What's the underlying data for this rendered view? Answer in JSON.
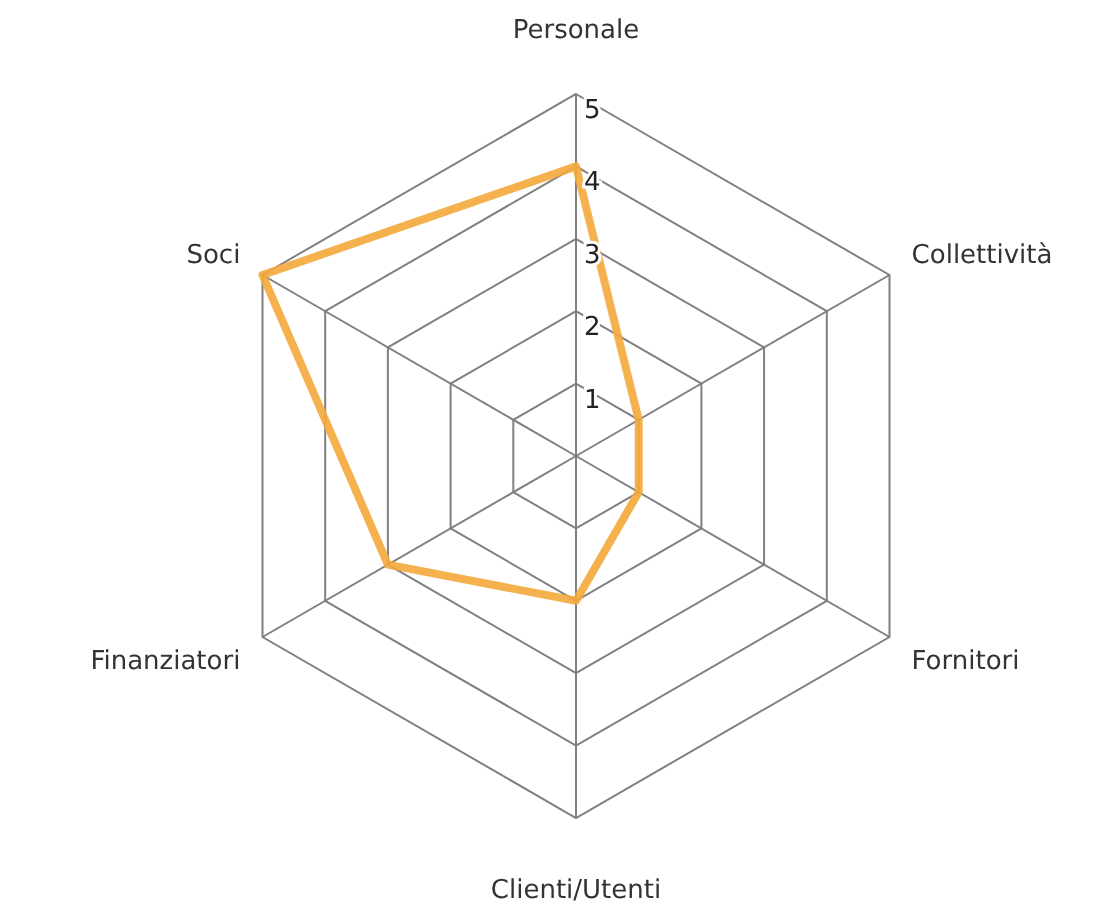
{
  "chart_data": {
    "type": "radar",
    "categories": [
      "Personale",
      "Collettività",
      "Fornitori",
      "Clienti/Utenti",
      "Finanziatori",
      "Soci"
    ],
    "series": [
      {
        "color": "#f5a83c",
        "values": [
          4,
          1,
          1,
          2,
          3,
          5
        ]
      }
    ],
    "ylim": [
      0,
      5
    ],
    "yticks": [
      1,
      2,
      3,
      4,
      5
    ],
    "grid": true,
    "marker": "none"
  }
}
